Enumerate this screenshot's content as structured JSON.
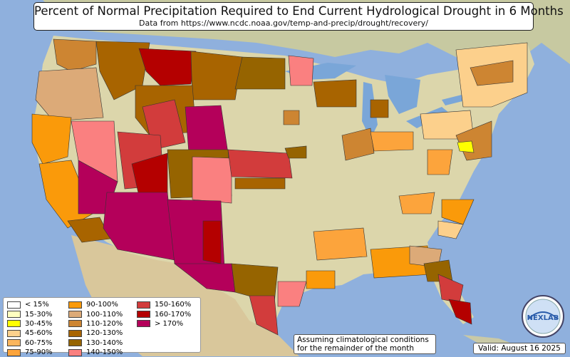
{
  "title": "Percent of Normal Precipitation Required to End Current Hydrological Drought in 6 Months",
  "subtitle": "Data from https://www.ncdc.noaa.gov/temp-and-precip/drought/recovery/",
  "legend": [
    {
      "label": "< 15%",
      "color": "#ffffff"
    },
    {
      "label": "15-30%",
      "color": "#ffffc0"
    },
    {
      "label": "30-45%",
      "color": "#ffff00"
    },
    {
      "label": "45-60%",
      "color": "#fcd08c"
    },
    {
      "label": "60-75%",
      "color": "#fbb65e"
    },
    {
      "label": "75-90%",
      "color": "#fca43c"
    },
    {
      "label": "90-100%",
      "color": "#fa9a0a"
    },
    {
      "label": "100-110%",
      "color": "#dcaa78"
    },
    {
      "label": "110-120%",
      "color": "#cd8532"
    },
    {
      "label": "120-130%",
      "color": "#a86400"
    },
    {
      "label": "130-140%",
      "color": "#966400"
    },
    {
      "label": "140-150%",
      "color": "#fa8080"
    },
    {
      "label": "150-160%",
      "color": "#d23c3c"
    },
    {
      "label": "160-170%",
      "color": "#b40000"
    },
    {
      "label": "> 170%",
      "color": "#b4005a"
    }
  ],
  "note_line1": "Assuming climatological conditions",
  "note_line2": "for the remainder of the month",
  "valid": "Valid: August 16 2025",
  "logo_text": "NEXLAB",
  "colors": {
    "ocean": "#8fb0dd",
    "land": "#d8d4a8",
    "lakes": "#7aa6d8"
  }
}
